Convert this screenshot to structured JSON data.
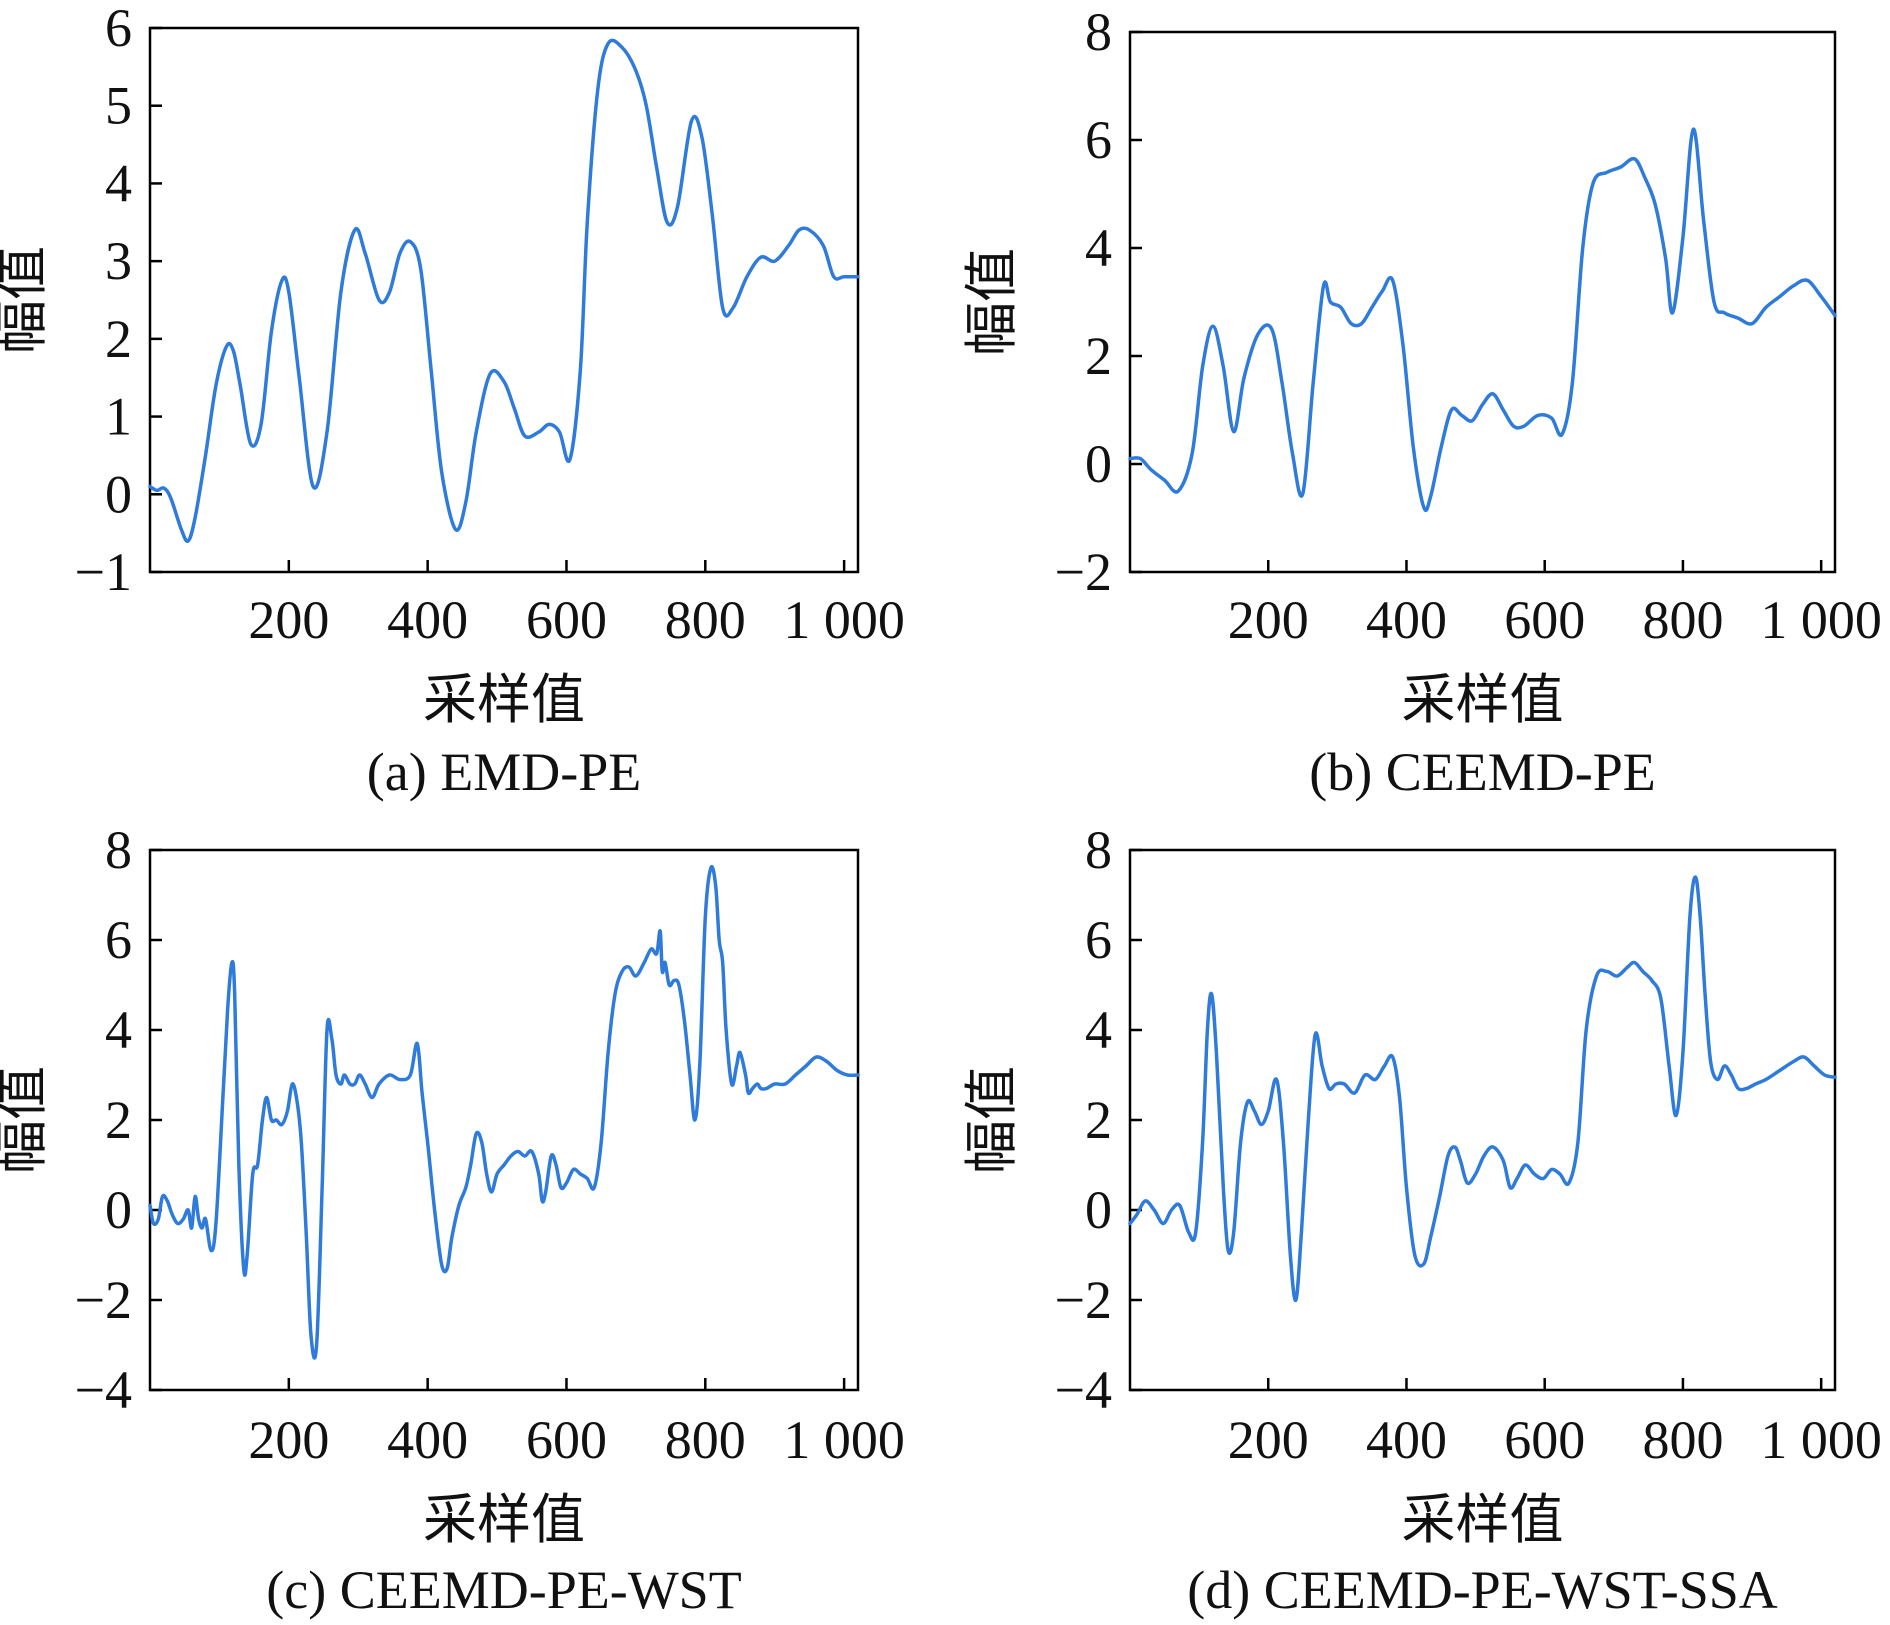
{
  "colors": {
    "line": "#2E7BDB",
    "axis": "#000000"
  },
  "chart_data": [
    {
      "type": "line",
      "caption": "(a) EMD-PE",
      "xlabel": "采样值",
      "ylabel": "幅值",
      "xlim": [
        0,
        1020
      ],
      "ylim": [
        -1,
        6
      ],
      "xticks": [
        200,
        400,
        600,
        800,
        1000
      ],
      "xtick_labels": [
        "200",
        "400",
        "600",
        "800",
        "1 000"
      ],
      "yticks": [
        -1,
        0,
        1,
        2,
        3,
        4,
        5,
        6
      ],
      "ytick_labels": [
        "−1",
        "0",
        "1",
        "2",
        "3",
        "4",
        "5",
        "6"
      ],
      "series": [
        {
          "name": "EMD-PE",
          "x": [
            0,
            10,
            20,
            30,
            45,
            55,
            65,
            80,
            95,
            110,
            120,
            130,
            145,
            160,
            175,
            190,
            200,
            215,
            235,
            255,
            275,
            295,
            310,
            330,
            345,
            360,
            375,
            390,
            405,
            420,
            440,
            455,
            470,
            490,
            510,
            525,
            540,
            560,
            575,
            590,
            605,
            620,
            630,
            645,
            660,
            680,
            700,
            715,
            730,
            745,
            760,
            780,
            795,
            810,
            825,
            840,
            860,
            880,
            900,
            920,
            935,
            950,
            970,
            985,
            1000,
            1020
          ],
          "values": [
            0.1,
            0.05,
            0.08,
            -0.05,
            -0.45,
            -0.6,
            -0.3,
            0.5,
            1.4,
            1.9,
            1.85,
            1.4,
            0.65,
            0.9,
            2.1,
            2.75,
            2.6,
            1.5,
            0.1,
            0.8,
            2.6,
            3.4,
            3.1,
            2.5,
            2.6,
            3.1,
            3.25,
            2.9,
            1.6,
            0.3,
            -0.45,
            -0.1,
            0.8,
            1.55,
            1.45,
            1.1,
            0.75,
            0.8,
            0.9,
            0.8,
            0.45,
            1.6,
            3.5,
            5.2,
            5.8,
            5.75,
            5.45,
            5.0,
            4.2,
            3.5,
            3.7,
            4.8,
            4.6,
            3.6,
            2.4,
            2.4,
            2.8,
            3.05,
            3.0,
            3.2,
            3.4,
            3.4,
            3.2,
            2.8,
            2.8,
            2.8
          ]
        }
      ]
    },
    {
      "type": "line",
      "caption": "(b) CEEMD-PE",
      "xlabel": "采样值",
      "ylabel": "幅值",
      "xlim": [
        0,
        1020
      ],
      "ylim": [
        -2,
        8
      ],
      "xticks": [
        200,
        400,
        600,
        800,
        1000
      ],
      "xtick_labels": [
        "200",
        "400",
        "600",
        "800",
        "1 000"
      ],
      "yticks": [
        -2,
        0,
        2,
        4,
        6,
        8
      ],
      "ytick_labels": [
        "−2",
        "0",
        "2",
        "4",
        "6",
        "8"
      ],
      "series": [
        {
          "name": "CEEMD-PE",
          "x": [
            0,
            15,
            30,
            50,
            70,
            90,
            105,
            120,
            135,
            150,
            165,
            185,
            205,
            220,
            235,
            250,
            265,
            280,
            290,
            305,
            320,
            335,
            350,
            365,
            380,
            395,
            410,
            425,
            435,
            450,
            465,
            480,
            495,
            510,
            525,
            540,
            555,
            570,
            590,
            610,
            625,
            640,
            655,
            670,
            690,
            710,
            730,
            745,
            760,
            775,
            785,
            800,
            815,
            830,
            845,
            860,
            880,
            900,
            920,
            940,
            960,
            980,
            1000,
            1020
          ],
          "values": [
            0.1,
            0.1,
            -0.1,
            -0.3,
            -0.5,
            0.2,
            1.8,
            2.55,
            1.8,
            0.6,
            1.6,
            2.4,
            2.5,
            1.5,
            0.2,
            -0.55,
            1.5,
            3.3,
            3.0,
            2.9,
            2.6,
            2.6,
            2.9,
            3.2,
            3.4,
            2.2,
            0.3,
            -0.8,
            -0.6,
            0.3,
            1.0,
            0.9,
            0.8,
            1.1,
            1.3,
            1.0,
            0.7,
            0.7,
            0.9,
            0.85,
            0.55,
            1.5,
            4.0,
            5.2,
            5.4,
            5.5,
            5.65,
            5.3,
            4.8,
            3.8,
            2.8,
            4.2,
            6.2,
            4.5,
            3.0,
            2.8,
            2.7,
            2.6,
            2.9,
            3.1,
            3.3,
            3.4,
            3.1,
            2.75
          ]
        }
      ]
    },
    {
      "type": "line",
      "caption": "(c) CEEMD-PE-WST",
      "xlabel": "采样值",
      "ylabel": "幅值",
      "xlim": [
        0,
        1020
      ],
      "ylim": [
        -4,
        8
      ],
      "xticks": [
        200,
        400,
        600,
        800,
        1000
      ],
      "xtick_labels": [
        "200",
        "400",
        "600",
        "800",
        "1 000"
      ],
      "yticks": [
        -4,
        -2,
        0,
        2,
        4,
        6,
        8
      ],
      "ytick_labels": [
        "−4",
        "−2",
        "0",
        "2",
        "4",
        "6",
        "8"
      ],
      "series": [
        {
          "name": "CEEMD-PE-WST",
          "x": [
            0,
            5,
            12,
            18,
            25,
            32,
            40,
            48,
            55,
            60,
            65,
            70,
            75,
            80,
            88,
            95,
            105,
            112,
            118,
            122,
            128,
            135,
            140,
            148,
            155,
            162,
            168,
            175,
            182,
            190,
            198,
            205,
            212,
            218,
            225,
            232,
            240,
            248,
            255,
            262,
            268,
            275,
            280,
            288,
            295,
            302,
            310,
            320,
            330,
            345,
            360,
            375,
            385,
            392,
            400,
            410,
            420,
            428,
            435,
            445,
            455,
            462,
            470,
            478,
            485,
            492,
            500,
            510,
            520,
            530,
            540,
            550,
            560,
            565,
            570,
            578,
            585,
            592,
            600,
            610,
            620,
            630,
            640,
            650,
            660,
            670,
            680,
            690,
            700,
            712,
            722,
            730,
            735,
            738,
            742,
            748,
            755,
            762,
            770,
            778,
            785,
            792,
            800,
            808,
            815,
            820,
            825,
            830,
            838,
            845,
            850,
            858,
            862,
            868,
            875,
            880,
            888,
            900,
            915,
            930,
            945,
            960,
            975,
            990,
            1005,
            1020
          ],
          "values": [
            0.1,
            -0.3,
            -0.2,
            0.3,
            0.2,
            -0.1,
            -0.3,
            -0.2,
            0.0,
            -0.4,
            0.3,
            -0.2,
            -0.4,
            -0.2,
            -0.9,
            -0.3,
            2.5,
            4.5,
            5.5,
            4.8,
            1.0,
            -1.3,
            -1.0,
            0.8,
            1.0,
            2.0,
            2.5,
            2.0,
            2.0,
            1.9,
            2.2,
            2.8,
            2.4,
            1.5,
            -0.5,
            -2.8,
            -3.0,
            0.5,
            4.0,
            3.8,
            3.0,
            2.8,
            3.0,
            2.8,
            2.8,
            3.0,
            2.8,
            2.5,
            2.8,
            3.0,
            2.9,
            3.0,
            3.7,
            2.6,
            1.5,
            0.0,
            -1.2,
            -1.3,
            -0.6,
            0.1,
            0.5,
            1.0,
            1.7,
            1.5,
            0.8,
            0.4,
            0.8,
            1.0,
            1.2,
            1.3,
            1.2,
            1.3,
            0.8,
            0.2,
            0.4,
            1.2,
            1.0,
            0.5,
            0.6,
            0.9,
            0.8,
            0.7,
            0.5,
            1.5,
            3.5,
            4.8,
            5.3,
            5.4,
            5.2,
            5.5,
            5.8,
            5.7,
            6.2,
            5.3,
            5.5,
            5.0,
            5.1,
            5.0,
            4.2,
            3.0,
            2.0,
            3.2,
            6.5,
            7.6,
            7.2,
            6.0,
            5.5,
            4.0,
            2.8,
            3.2,
            3.5,
            3.0,
            2.6,
            2.7,
            2.8,
            2.7,
            2.7,
            2.8,
            2.8,
            3.0,
            3.2,
            3.4,
            3.3,
            3.1,
            3.0,
            3.0
          ]
        }
      ]
    },
    {
      "type": "line",
      "caption": "(d) CEEMD-PE-WST-SSA",
      "xlabel": "采样值",
      "ylabel": "幅值",
      "xlim": [
        0,
        1020
      ],
      "ylim": [
        -4,
        8
      ],
      "xticks": [
        200,
        400,
        600,
        800,
        1000
      ],
      "xtick_labels": [
        "200",
        "400",
        "600",
        "800",
        "1 000"
      ],
      "yticks": [
        -4,
        -2,
        0,
        2,
        4,
        6,
        8
      ],
      "ytick_labels": [
        "−4",
        "−2",
        "0",
        "2",
        "4",
        "6",
        "8"
      ],
      "series": [
        {
          "name": "CEEMD-PE-WST-SSA",
          "x": [
            0,
            10,
            22,
            35,
            48,
            60,
            72,
            85,
            95,
            105,
            112,
            118,
            125,
            135,
            142,
            150,
            160,
            170,
            180,
            190,
            200,
            212,
            222,
            232,
            240,
            248,
            258,
            268,
            278,
            288,
            298,
            310,
            325,
            340,
            355,
            368,
            380,
            390,
            400,
            412,
            425,
            435,
            448,
            460,
            470,
            478,
            488,
            500,
            512,
            525,
            540,
            550,
            560,
            572,
            585,
            598,
            610,
            622,
            635,
            648,
            660,
            675,
            690,
            705,
            720,
            730,
            742,
            755,
            768,
            780,
            790,
            800,
            810,
            818,
            825,
            832,
            840,
            850,
            860,
            870,
            880,
            892,
            905,
            920,
            940,
            960,
            975,
            990,
            1005,
            1020
          ],
          "values": [
            -0.3,
            -0.1,
            0.2,
            0.0,
            -0.3,
            0.0,
            0.1,
            -0.5,
            -0.5,
            1.5,
            4.0,
            4.8,
            3.5,
            0.5,
            -0.9,
            -0.5,
            1.5,
            2.4,
            2.2,
            1.9,
            2.2,
            2.9,
            1.5,
            -1.0,
            -2.0,
            -0.5,
            2.0,
            3.9,
            3.2,
            2.7,
            2.8,
            2.8,
            2.6,
            3.0,
            2.9,
            3.2,
            3.4,
            2.5,
            0.5,
            -1.0,
            -1.2,
            -0.6,
            0.3,
            1.2,
            1.4,
            1.1,
            0.6,
            0.8,
            1.2,
            1.4,
            1.1,
            0.5,
            0.7,
            1.0,
            0.8,
            0.7,
            0.9,
            0.8,
            0.6,
            1.5,
            4.0,
            5.2,
            5.3,
            5.2,
            5.4,
            5.5,
            5.3,
            5.1,
            4.7,
            3.2,
            2.1,
            3.5,
            6.5,
            7.4,
            6.5,
            4.8,
            3.3,
            2.9,
            3.2,
            3.0,
            2.7,
            2.7,
            2.8,
            2.9,
            3.1,
            3.3,
            3.4,
            3.2,
            3.0,
            2.95
          ]
        }
      ]
    }
  ]
}
